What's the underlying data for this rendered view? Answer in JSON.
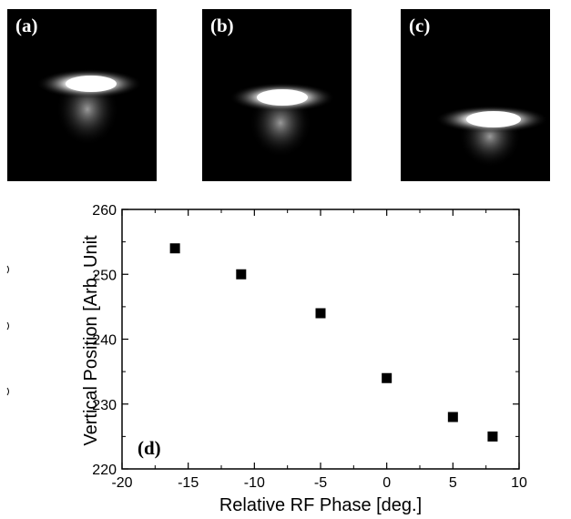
{
  "images": [
    {
      "label": "(a)"
    },
    {
      "label": "(b)"
    },
    {
      "label": "(c)"
    }
  ],
  "chart_data": {
    "type": "scatter",
    "panel_label": "(d)",
    "xlabel": "Relative RF Phase [deg.]",
    "ylabel": "Vertical Position [Arb. Unit",
    "xlim": [
      -20,
      10
    ],
    "ylim": [
      220,
      260
    ],
    "xticks": [
      -20,
      -15,
      -10,
      -5,
      0,
      5,
      10
    ],
    "yticks": [
      220,
      230,
      240,
      250,
      260
    ],
    "grid": false,
    "marker": "square",
    "marker_color": "#000000",
    "series": [
      {
        "x": [
          -16,
          -11,
          -5,
          0,
          5,
          8
        ],
        "y": [
          254,
          250,
          244,
          234,
          228,
          225
        ]
      }
    ]
  }
}
